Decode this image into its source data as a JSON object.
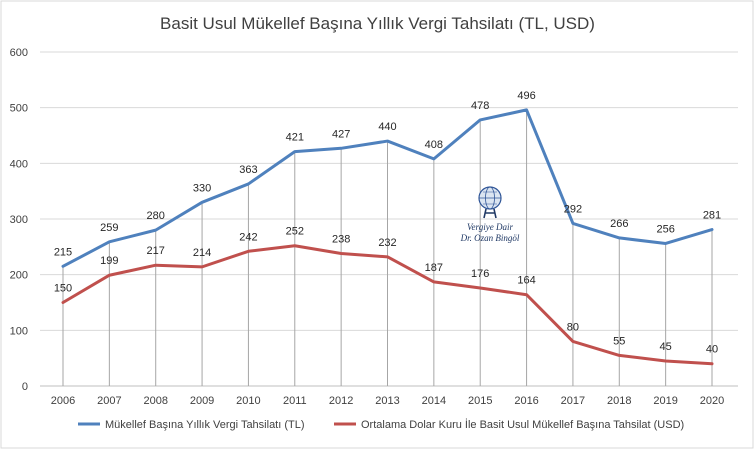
{
  "chart_data": {
    "type": "line",
    "title": "Basit Usul Mükellef Başına Yıllık Vergi Tahsilatı (TL, USD)",
    "categories": [
      "2006",
      "2007",
      "2008",
      "2009",
      "2010",
      "2011",
      "2012",
      "2013",
      "2014",
      "2015",
      "2016",
      "2017",
      "2018",
      "2019",
      "2020"
    ],
    "series": [
      {
        "name": "Mükellef Başına Yıllık Vergi Tahsilatı (TL)",
        "color": "#4f81bd",
        "values": [
          215,
          259,
          280,
          330,
          363,
          421,
          427,
          440,
          408,
          478,
          496,
          292,
          266,
          256,
          281
        ]
      },
      {
        "name": "Ortalama Dolar Kuru İle Basit Usul Mükellef Başına Tahsilat (USD)",
        "color": "#c0504d",
        "values": [
          150,
          199,
          217,
          214,
          242,
          252,
          238,
          232,
          187,
          176,
          164,
          80,
          55,
          45,
          40
        ]
      }
    ],
    "ylim": [
      0,
      600
    ],
    "yticks": [
      0,
      100,
      200,
      300,
      400,
      500,
      600
    ],
    "grid": true,
    "drop_lines": true,
    "legend": "bottom",
    "watermark": {
      "line1": "Vergiye Dair",
      "line2": "Dr. Ozan Bingöl",
      "icon": "globe-person-logo"
    }
  }
}
